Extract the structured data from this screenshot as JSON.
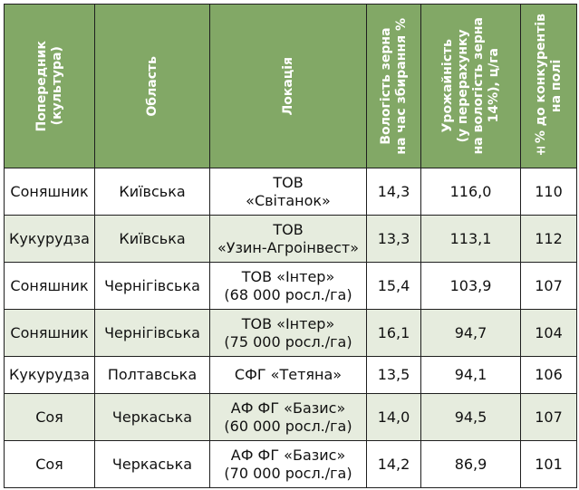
{
  "table": {
    "headers": [
      "Попередник\n(культура)",
      "Область",
      "Локація",
      "Вологість зерна\nна час збирання %",
      "Урожайність\n(у перерахунку\nна вологість зерна\n14%), ц/га",
      "±% до конкурентів\nна полі"
    ],
    "rows": [
      {
        "predecessor": "Соняшник",
        "region": "Київська",
        "location": "ТОВ\n«Світанок»",
        "moisture": "14,3",
        "yield": "116,0",
        "vs_competitors": "110"
      },
      {
        "predecessor": "Кукурудза",
        "region": "Київська",
        "location": "ТОВ\n«Узин-Агроінвест»",
        "moisture": "13,3",
        "yield": "113,1",
        "vs_competitors": "112"
      },
      {
        "predecessor": "Соняшник",
        "region": "Чернігівська",
        "location": "ТОВ «Інтер»\n(68 000 росл./га)",
        "moisture": "15,4",
        "yield": "103,9",
        "vs_competitors": "107"
      },
      {
        "predecessor": "Соняшник",
        "region": "Чернігівська",
        "location": "ТОВ «Інтер»\n(75 000 росл./га)",
        "moisture": "16,1",
        "yield": "94,7",
        "vs_competitors": "104"
      },
      {
        "predecessor": "Кукурудза",
        "region": "Полтавська",
        "location": "СФГ «Тетяна»",
        "moisture": "13,5",
        "yield": "94,1",
        "vs_competitors": "106"
      },
      {
        "predecessor": "Соя",
        "region": "Черкаська",
        "location": "АФ ФГ «Базис»\n(60 000 росл./га)",
        "moisture": "14,0",
        "yield": "94,5",
        "vs_competitors": "107"
      },
      {
        "predecessor": "Соя",
        "region": "Черкаська",
        "location": "АФ ФГ «Базис»\n(70 000 росл./га)",
        "moisture": "14,2",
        "yield": "86,9",
        "vs_competitors": "101"
      }
    ]
  }
}
